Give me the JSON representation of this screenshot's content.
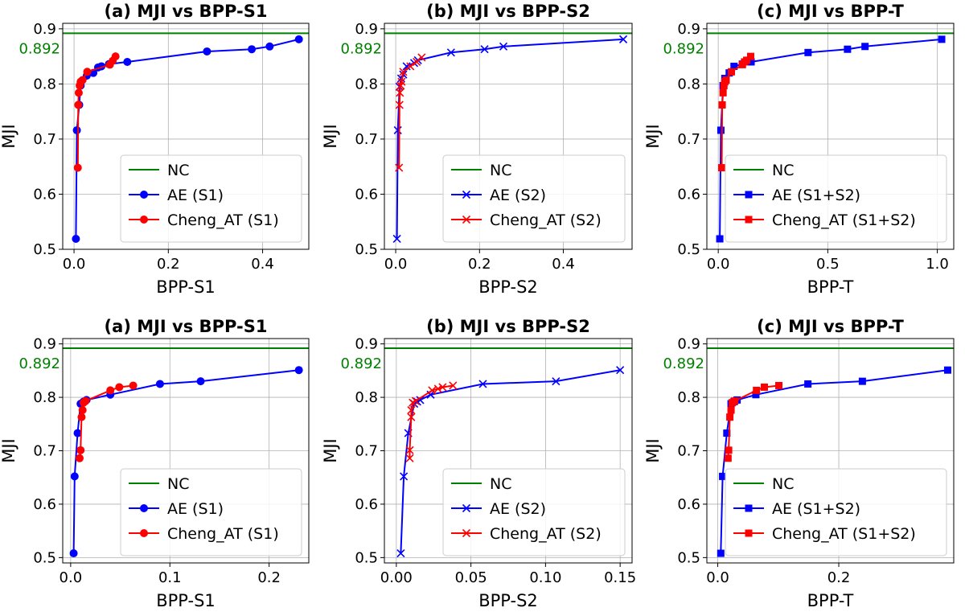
{
  "colors": {
    "nc": "#008000",
    "ae": "#0000ff",
    "cheng": "#ff0000",
    "grid": "#b0b0b0",
    "axis": "#000000"
  },
  "chart_data": [
    {
      "type": "line",
      "title": "(a) MJI vs BPP-S1",
      "xlabel": "BPP-S1",
      "ylabel": "MJI",
      "xlim": [
        -0.024,
        0.498
      ],
      "ylim": [
        0.5,
        0.91
      ],
      "xticks": [
        0.0,
        0.2,
        0.4
      ],
      "xtick_labels": [
        "0.0",
        "0.2",
        "0.4"
      ],
      "yticks": [
        0.5,
        0.6,
        0.7,
        0.8,
        0.9
      ],
      "ytick_labels": [
        "0.5",
        "0.6",
        "0.7",
        "0.8",
        "0.9"
      ],
      "grid": true,
      "legend_position": "lower right",
      "nc_value": 0.892,
      "nc_label": "0.892",
      "series": [
        {
          "name": "NC",
          "style": "hline",
          "color": "#008000"
        },
        {
          "name": "AE (S1)",
          "marker": "o",
          "color": "#0000ff",
          "x": [
            0.004,
            0.006,
            0.011,
            0.014,
            0.027,
            0.041,
            0.051,
            0.058,
            0.074,
            0.113,
            0.282,
            0.377,
            0.415,
            0.477
          ],
          "y": [
            0.519,
            0.716,
            0.762,
            0.797,
            0.815,
            0.82,
            0.83,
            0.832,
            0.836,
            0.84,
            0.859,
            0.863,
            0.868,
            0.881
          ]
        },
        {
          "name": "Cheng_AT (S1)",
          "marker": "o",
          "color": "#ff0000",
          "x": [
            0.008,
            0.009,
            0.01,
            0.012,
            0.014,
            0.018,
            0.028,
            0.076,
            0.082,
            0.088
          ],
          "y": [
            0.648,
            0.762,
            0.784,
            0.797,
            0.804,
            0.807,
            0.822,
            0.835,
            0.842,
            0.85
          ]
        }
      ]
    },
    {
      "type": "line",
      "title": "(b) MJI vs BPP-S2",
      "xlabel": "BPP-S2",
      "ylabel": "MJI",
      "xlim": [
        -0.027,
        0.564
      ],
      "ylim": [
        0.5,
        0.91
      ],
      "xticks": [
        0.0,
        0.2,
        0.4
      ],
      "xtick_labels": [
        "0.0",
        "0.2",
        "0.4"
      ],
      "yticks": [
        0.5,
        0.6,
        0.7,
        0.8,
        0.9
      ],
      "ytick_labels": [
        "0.5",
        "0.6",
        "0.7",
        "0.8",
        "0.9"
      ],
      "grid": true,
      "legend_position": "lower right",
      "nc_value": 0.892,
      "nc_label": "0.892",
      "series": [
        {
          "name": "NC",
          "style": "hline",
          "color": "#008000"
        },
        {
          "name": "AE (S2)",
          "marker": "x",
          "color": "#0000ff",
          "x": [
            0.003,
            0.005,
            0.009,
            0.013,
            0.018,
            0.026,
            0.044,
            0.053,
            0.132,
            0.212,
            0.257,
            0.543
          ],
          "y": [
            0.519,
            0.716,
            0.795,
            0.81,
            0.817,
            0.832,
            0.838,
            0.843,
            0.857,
            0.863,
            0.868,
            0.881
          ]
        },
        {
          "name": "Cheng_AT (S2)",
          "marker": "x",
          "color": "#ff0000",
          "x": [
            0.008,
            0.009,
            0.01,
            0.012,
            0.014,
            0.018,
            0.035,
            0.05,
            0.062
          ],
          "y": [
            0.648,
            0.762,
            0.784,
            0.797,
            0.804,
            0.822,
            0.832,
            0.84,
            0.848
          ]
        }
      ]
    },
    {
      "type": "line",
      "title": "(c) MJI vs BPP-T",
      "xlabel": "BPP-T",
      "ylabel": "MJI",
      "xlim": [
        -0.052,
        1.075
      ],
      "ylim": [
        0.5,
        0.91
      ],
      "xticks": [
        0.0,
        0.5,
        1.0
      ],
      "xtick_labels": [
        "0.0",
        "0.5",
        "1.0"
      ],
      "yticks": [
        0.5,
        0.6,
        0.7,
        0.8,
        0.9
      ],
      "ytick_labels": [
        "0.5",
        "0.6",
        "0.7",
        "0.8",
        "0.9"
      ],
      "grid": true,
      "legend_position": "lower right",
      "nc_value": 0.892,
      "nc_label": "0.892",
      "series": [
        {
          "name": "NC",
          "style": "hline",
          "color": "#008000"
        },
        {
          "name": "AE (S1+S2)",
          "marker": "s",
          "color": "#0000ff",
          "x": [
            0.007,
            0.012,
            0.022,
            0.03,
            0.05,
            0.072,
            0.11,
            0.15,
            0.41,
            0.59,
            0.67,
            1.02
          ],
          "y": [
            0.519,
            0.716,
            0.797,
            0.81,
            0.82,
            0.832,
            0.836,
            0.84,
            0.857,
            0.863,
            0.868,
            0.881
          ]
        },
        {
          "name": "Cheng_AT (S1+S2)",
          "marker": "s",
          "color": "#ff0000",
          "x": [
            0.016,
            0.018,
            0.022,
            0.026,
            0.03,
            0.036,
            0.06,
            0.11,
            0.12,
            0.13,
            0.148
          ],
          "y": [
            0.648,
            0.762,
            0.784,
            0.797,
            0.804,
            0.807,
            0.822,
            0.835,
            0.84,
            0.843,
            0.85
          ]
        }
      ]
    },
    {
      "type": "line",
      "title": "(a) MJI vs BPP-S1",
      "xlabel": "BPP-S1",
      "ylabel": "MJI",
      "xlim": [
        -0.008,
        0.24
      ],
      "ylim": [
        0.49,
        0.91
      ],
      "xticks": [
        0.0,
        0.1,
        0.2
      ],
      "xtick_labels": [
        "0.0",
        "0.1",
        "0.2"
      ],
      "yticks": [
        0.5,
        0.6,
        0.7,
        0.8,
        0.9
      ],
      "ytick_labels": [
        "0.5",
        "0.6",
        "0.7",
        "0.8",
        "0.9"
      ],
      "grid": true,
      "legend_position": "lower right",
      "nc_value": 0.892,
      "nc_label": "0.892",
      "series": [
        {
          "name": "NC",
          "style": "hline",
          "color": "#008000"
        },
        {
          "name": "AE (S1)",
          "marker": "o",
          "color": "#0000ff",
          "x": [
            0.003,
            0.004,
            0.007,
            0.01,
            0.013,
            0.016,
            0.04,
            0.09,
            0.131,
            0.23
          ],
          "y": [
            0.508,
            0.652,
            0.733,
            0.788,
            0.792,
            0.795,
            0.805,
            0.825,
            0.83,
            0.851
          ]
        },
        {
          "name": "Cheng_AT (S1)",
          "marker": "o",
          "color": "#ff0000",
          "x": [
            0.009,
            0.01,
            0.011,
            0.012,
            0.013,
            0.015,
            0.04,
            0.049,
            0.063
          ],
          "y": [
            0.686,
            0.701,
            0.763,
            0.776,
            0.79,
            0.793,
            0.813,
            0.819,
            0.822
          ]
        }
      ]
    },
    {
      "type": "line",
      "title": "(b) MJI vs BPP-S2",
      "xlabel": "BPP-S2",
      "ylabel": "MJI",
      "xlim": [
        -0.008,
        0.158
      ],
      "ylim": [
        0.49,
        0.91
      ],
      "xticks": [
        0.0,
        0.05,
        0.1,
        0.15
      ],
      "xtick_labels": [
        "0.00",
        "0.05",
        "0.10",
        "0.15"
      ],
      "yticks": [
        0.5,
        0.6,
        0.7,
        0.8,
        0.9
      ],
      "ytick_labels": [
        "0.5",
        "0.6",
        "0.7",
        "0.8",
        "0.9"
      ],
      "grid": true,
      "legend_position": "lower right",
      "nc_value": 0.892,
      "nc_label": "0.892",
      "series": [
        {
          "name": "NC",
          "style": "hline",
          "color": "#008000"
        },
        {
          "name": "AE (S2)",
          "marker": "x",
          "color": "#0000ff",
          "x": [
            0.003,
            0.005,
            0.008,
            0.012,
            0.014,
            0.016,
            0.023,
            0.058,
            0.107,
            0.15
          ],
          "y": [
            0.508,
            0.652,
            0.733,
            0.788,
            0.792,
            0.795,
            0.805,
            0.825,
            0.83,
            0.851
          ]
        },
        {
          "name": "Cheng_AT (S2)",
          "marker": "x",
          "color": "#ff0000",
          "x": [
            0.009,
            0.009,
            0.01,
            0.01,
            0.011,
            0.013,
            0.024,
            0.028,
            0.031,
            0.038
          ],
          "y": [
            0.686,
            0.701,
            0.763,
            0.776,
            0.79,
            0.793,
            0.813,
            0.816,
            0.819,
            0.822
          ]
        }
      ]
    },
    {
      "type": "line",
      "title": "(c) MJI vs BPP-T",
      "xlabel": "BPP-T",
      "ylabel": "MJI",
      "xlim": [
        -0.018,
        0.39
      ],
      "ylim": [
        0.49,
        0.91
      ],
      "xticks": [
        0.0,
        0.2
      ],
      "xtick_labels": [
        "0.0",
        "0.2"
      ],
      "yticks": [
        0.5,
        0.6,
        0.7,
        0.8,
        0.9
      ],
      "ytick_labels": [
        "0.5",
        "0.6",
        "0.7",
        "0.8",
        "0.9"
      ],
      "grid": true,
      "legend_position": "lower right",
      "nc_value": 0.892,
      "nc_label": "0.892",
      "series": [
        {
          "name": "NC",
          "style": "hline",
          "color": "#008000"
        },
        {
          "name": "AE (S1+S2)",
          "marker": "s",
          "color": "#0000ff",
          "x": [
            0.005,
            0.008,
            0.015,
            0.022,
            0.027,
            0.032,
            0.063,
            0.149,
            0.239,
            0.38
          ],
          "y": [
            0.508,
            0.652,
            0.733,
            0.788,
            0.792,
            0.795,
            0.805,
            0.825,
            0.83,
            0.851
          ]
        },
        {
          "name": "Cheng_AT (S1+S2)",
          "marker": "s",
          "color": "#ff0000",
          "x": [
            0.017,
            0.018,
            0.02,
            0.022,
            0.024,
            0.028,
            0.064,
            0.077,
            0.101
          ],
          "y": [
            0.686,
            0.701,
            0.763,
            0.776,
            0.79,
            0.793,
            0.813,
            0.819,
            0.822
          ]
        }
      ]
    }
  ]
}
